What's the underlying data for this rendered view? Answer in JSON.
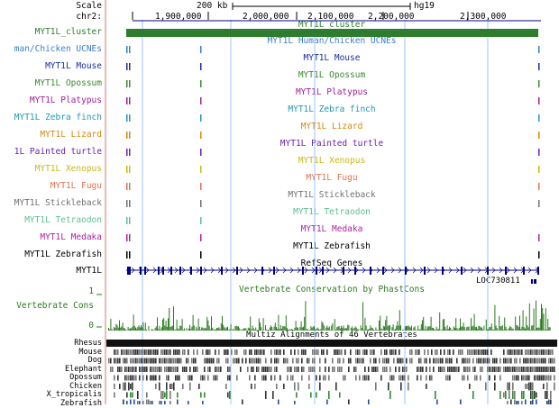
{
  "ruler": {
    "scale_label": "Scale",
    "chrom_label": "chr2:",
    "scale_value": "200 kb",
    "assembly": "hg19",
    "ticks": [
      "1,900,000",
      "2,000,000",
      "2,100,000",
      "2,200,000",
      "2,300,000"
    ]
  },
  "tracks": {
    "cluster": {
      "label": "MYT1L_cluster",
      "title": "MYT1L_cluster",
      "color": "#2e7d2e"
    },
    "species": [
      {
        "label": "man/Chicken UCNEs",
        "title": "MYT1L Human/Chicken UCNEs",
        "color": "#3a7ec8"
      },
      {
        "label": "MYT1L Mouse",
        "title": "MYT1L Mouse",
        "color": "#1a2d9c"
      },
      {
        "label": "MYT1L Opossum",
        "title": "MYT1L Opossum",
        "color": "#3a8a2e"
      },
      {
        "label": "MYT1L Platypus",
        "title": "MYT1L Platypus",
        "color": "#a0209a"
      },
      {
        "label": "MYT1L Zebra finch",
        "title": "MYT1L Zebra finch",
        "color": "#2496b0"
      },
      {
        "label": "MYT1L Lizard",
        "title": "MYT1L Lizard",
        "color": "#d4880e"
      },
      {
        "label": "1L Painted turtle",
        "title": "MYT1L Painted turtle",
        "color": "#6b20b0"
      },
      {
        "label": "MYT1L Xenopus",
        "title": "MYT1L Xenopus",
        "color": "#c8b810"
      },
      {
        "label": "MYT1L Fugu",
        "title": "MYT1L Fugu",
        "color": "#e07050"
      },
      {
        "label": "MYT1L Stickleback",
        "title": "MYT1L Stickleback",
        "color": "#707070"
      },
      {
        "label": "MYT1L Tetraodon",
        "title": "MYT1L Tetraodon",
        "color": "#60c090"
      },
      {
        "label": "MYT1L Medaka",
        "title": "MYT1L Medaka",
        "color": "#b020a0"
      },
      {
        "label": "MYT1L Zebrafish",
        "title": "MYT1L Zebrafish",
        "color": "#000000"
      }
    ],
    "refseq": {
      "title": "RefSeq Genes",
      "gene_label": "MYT1L",
      "gene2_label": "LOC730811"
    },
    "conservation": {
      "label": "Vertebrate Cons",
      "title": "Vertebrate Conservation by PhastCons",
      "ymax": "1",
      "ymin": "0",
      "color": "#2a7a1e"
    },
    "multiz": {
      "title": "Multiz Alignments of 46 Vertebrates",
      "species": [
        "Rhesus",
        "Mouse",
        "Dog",
        "Elephant",
        "Opossum",
        "Chicken",
        "X_tropicalis",
        "Zebrafish"
      ]
    }
  },
  "colors": {
    "guide_line": "#9ec4ff",
    "red_line": "#e07070",
    "ruler_blue": "#00008b"
  }
}
